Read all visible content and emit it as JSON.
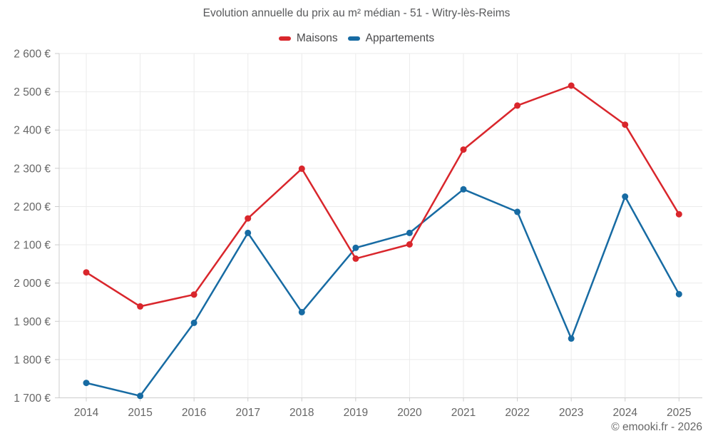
{
  "title": "Evolution annuelle du prix au m² médian - 51 - Witry-lès-Reims",
  "footer": "© emooki.fr - 2026",
  "colors": {
    "maisons": "#d9262c",
    "appartements": "#176ba3",
    "gridline": "#ebebeb",
    "axis_line": "#cccccc",
    "axis_text": "#666666"
  },
  "chart_data": {
    "type": "line",
    "categories": [
      "2014",
      "2015",
      "2016",
      "2017",
      "2018",
      "2019",
      "2020",
      "2021",
      "2022",
      "2023",
      "2024",
      "2025"
    ],
    "series": [
      {
        "name": "Maisons",
        "color": "#d9262c",
        "values": [
          2028,
          1939,
          1970,
          2169,
          2299,
          2064,
          2101,
          2349,
          2464,
          2516,
          2414,
          2180
        ]
      },
      {
        "name": "Appartements",
        "color": "#176ba3",
        "values": [
          1739,
          1705,
          1896,
          2131,
          1924,
          2092,
          2131,
          2245,
          2186,
          1855,
          2226,
          1971
        ]
      }
    ],
    "title": "Evolution annuelle du prix au m² médian - 51 - Witry-lès-Reims",
    "xlabel": "",
    "ylabel": "",
    "ylim": [
      1700,
      2600
    ],
    "ytick_step": 100,
    "ytick_labels": [
      "1 700 €",
      "1 800 €",
      "1 900 €",
      "2 000 €",
      "2 100 €",
      "2 200 €",
      "2 300 €",
      "2 400 €",
      "2 500 €",
      "2 600 €"
    ],
    "grid": true,
    "legend_position": "top",
    "markers": true
  }
}
